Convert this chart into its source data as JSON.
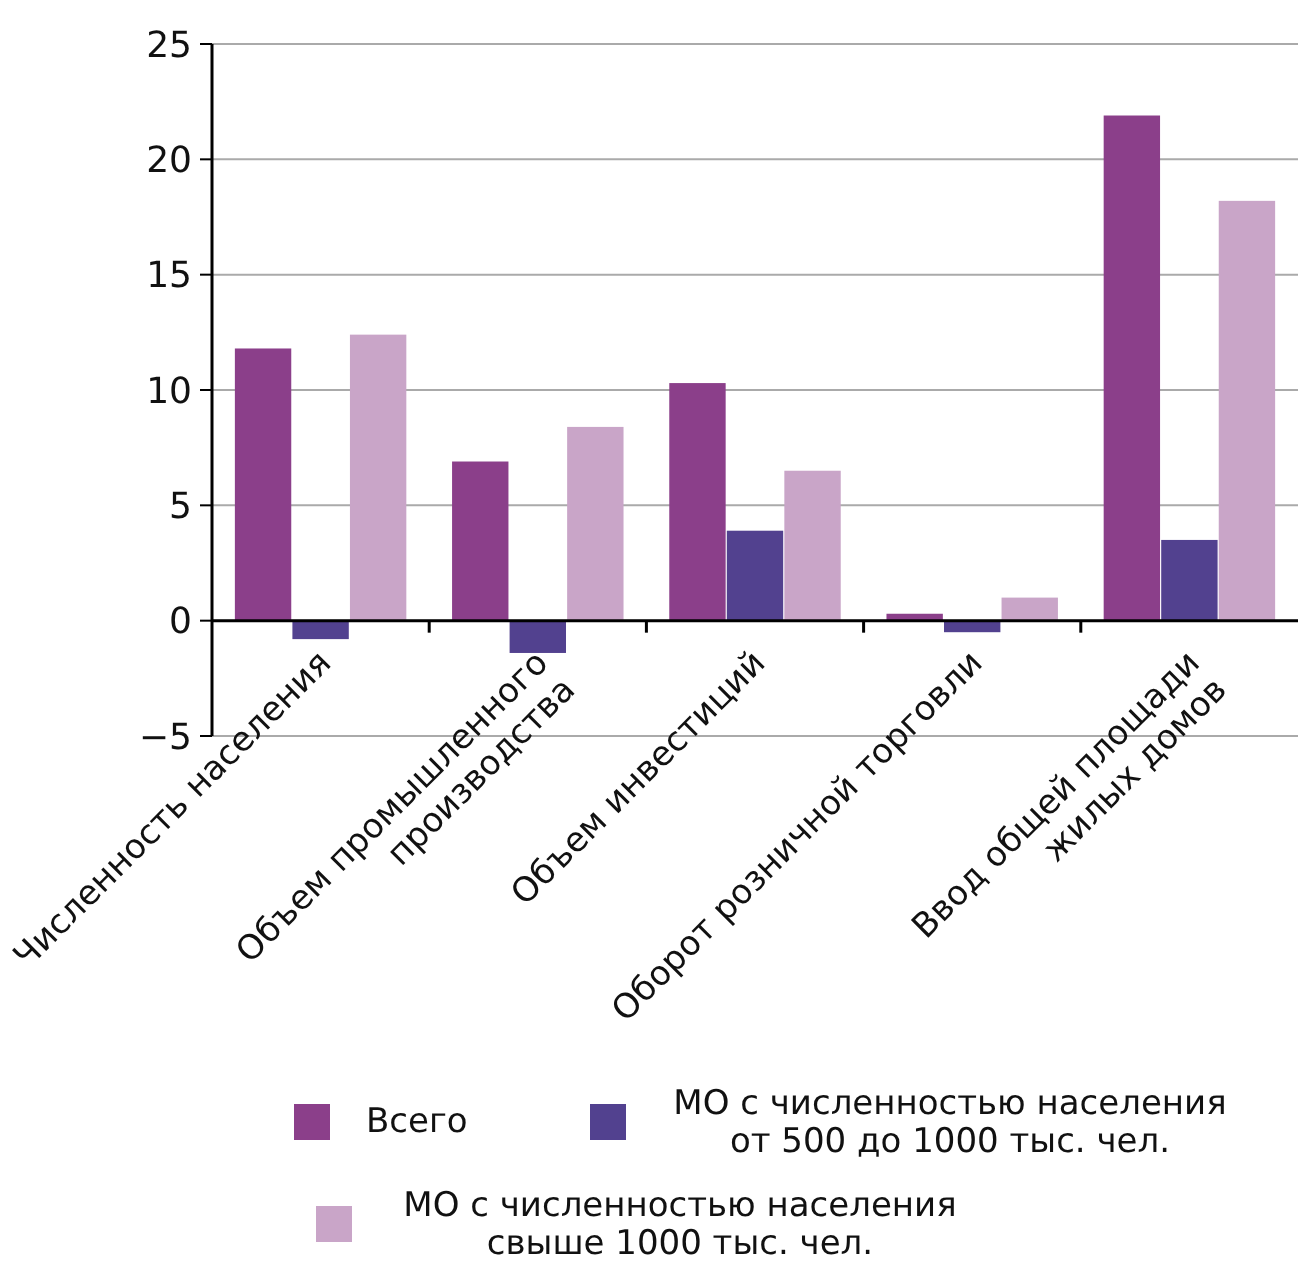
{
  "chart_data": {
    "type": "bar",
    "categories": [
      "Численность населения",
      "Объем промышленного\nпроизводства",
      "Объем инвестиций",
      "Оборот розничной торговли",
      "Ввод общей площади\nжилых домов"
    ],
    "series": [
      {
        "name": "Всего",
        "color": "#8b3f8a",
        "values": [
          11.8,
          6.9,
          10.3,
          0.3,
          21.9
        ]
      },
      {
        "name": "МО с численностью населения от 500 до 1000 тыс. чел.",
        "color": "#52418f",
        "values": [
          -0.8,
          -1.4,
          3.9,
          -0.5,
          3.5
        ]
      },
      {
        "name": "МО с численностью населения свыше 1000 тыс. чел.",
        "color": "#c9a5c8",
        "values": [
          12.4,
          8.4,
          6.5,
          1.0,
          18.2
        ]
      }
    ],
    "ylim": [
      -5,
      25
    ],
    "yticks": [
      {
        "value": -5,
        "label": "−5"
      },
      0,
      5,
      10,
      15,
      20,
      25
    ],
    "grid": "y",
    "legend": "bottom"
  }
}
